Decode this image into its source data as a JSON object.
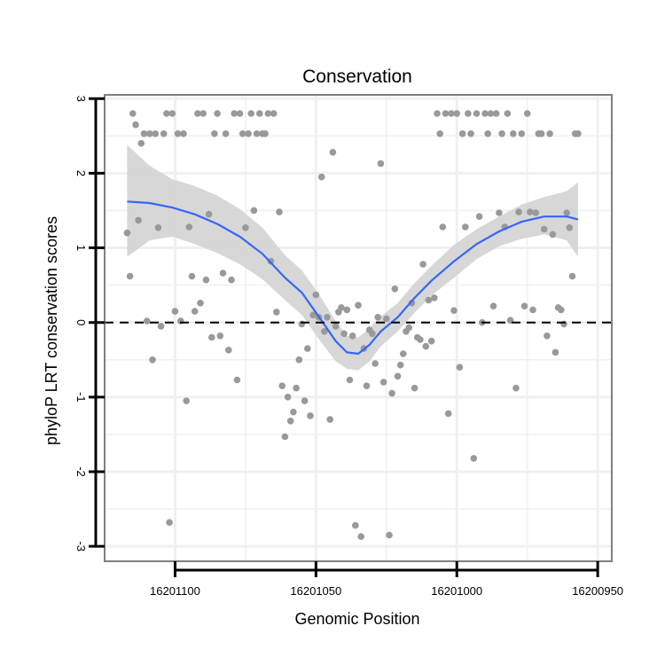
{
  "chart_data": {
    "type": "scatter",
    "title": "Conservation",
    "xlabel": "Genomic Position",
    "ylabel": "phyloP LRT conservation scores",
    "x_reversed": true,
    "xlim": [
      16201125,
      16200945
    ],
    "ylim": [
      -3.2,
      3.05
    ],
    "x_ticks": [
      16201100,
      16201050,
      16201000,
      16200950
    ],
    "x_tick_labels": [
      "16201100",
      "16201050",
      "16201000",
      "16200950"
    ],
    "y_ticks": [
      -3,
      -2,
      -1,
      0,
      1,
      2,
      3
    ],
    "y_tick_labels": [
      "-3",
      "-2",
      "-1",
      "0",
      "1",
      "2",
      "3"
    ],
    "grid": true,
    "reference_line": {
      "y": 0,
      "style": "dashed"
    },
    "colors": {
      "points": "#999999",
      "smooth": "#3366FF",
      "band": "#D3D3D3",
      "panel_border": "#808080",
      "grid": "#F0F0F0"
    },
    "points": [
      [
        16201117,
        1.2
      ],
      [
        16201116,
        0.62
      ],
      [
        16201115,
        2.8
      ],
      [
        16201114,
        2.65
      ],
      [
        16201113,
        1.37
      ],
      [
        16201112,
        2.4
      ],
      [
        16201111,
        2.53
      ],
      [
        16201110,
        0.02
      ],
      [
        16201109,
        2.53
      ],
      [
        16201108,
        -0.5
      ],
      [
        16201107,
        2.53
      ],
      [
        16201106,
        1.27
      ],
      [
        16201105,
        -0.05
      ],
      [
        16201104,
        2.53
      ],
      [
        16201103,
        2.8
      ],
      [
        16201102,
        -2.68
      ],
      [
        16201101,
        2.8
      ],
      [
        16201100,
        0.15
      ],
      [
        16201099,
        2.53
      ],
      [
        16201098,
        0.02
      ],
      [
        16201097,
        2.53
      ],
      [
        16201096,
        -1.05
      ],
      [
        16201095,
        1.28
      ],
      [
        16201094,
        0.62
      ],
      [
        16201093,
        0.15
      ],
      [
        16201092,
        2.8
      ],
      [
        16201091,
        0.26
      ],
      [
        16201090,
        2.8
      ],
      [
        16201089,
        0.57
      ],
      [
        16201088,
        1.45
      ],
      [
        16201087,
        -0.2
      ],
      [
        16201086,
        2.53
      ],
      [
        16201085,
        2.8
      ],
      [
        16201084,
        -0.18
      ],
      [
        16201083,
        0.66
      ],
      [
        16201082,
        2.53
      ],
      [
        16201081,
        -0.37
      ],
      [
        16201080,
        0.57
      ],
      [
        16201079,
        2.8
      ],
      [
        16201078,
        -0.77
      ],
      [
        16201077,
        2.8
      ],
      [
        16201076,
        2.53
      ],
      [
        16201075,
        1.27
      ],
      [
        16201074,
        2.53
      ],
      [
        16201073,
        2.8
      ],
      [
        16201072,
        1.5
      ],
      [
        16201071,
        2.53
      ],
      [
        16201070,
        2.8
      ],
      [
        16201069,
        2.53
      ],
      [
        16201068,
        2.53
      ],
      [
        16201067,
        2.8
      ],
      [
        16201066,
        0.82
      ],
      [
        16201065,
        2.8
      ],
      [
        16201064,
        0.14
      ],
      [
        16201063,
        1.48
      ],
      [
        16201062,
        -0.85
      ],
      [
        16201061,
        -1.53
      ],
      [
        16201060,
        -1.0
      ],
      [
        16201059,
        -1.32
      ],
      [
        16201058,
        -1.2
      ],
      [
        16201057,
        -0.88
      ],
      [
        16201056,
        -0.5
      ],
      [
        16201055,
        -0.02
      ],
      [
        16201054,
        -1.05
      ],
      [
        16201053,
        -0.35
      ],
      [
        16201052,
        -1.25
      ],
      [
        16201051,
        0.1
      ],
      [
        16201050,
        0.37
      ],
      [
        16201049,
        0.07
      ],
      [
        16201048,
        1.95
      ],
      [
        16201047,
        -0.12
      ],
      [
        16201046,
        0.07
      ],
      [
        16201045,
        -1.3
      ],
      [
        16201044,
        2.28
      ],
      [
        16201043,
        -0.05
      ],
      [
        16201042,
        0.14
      ],
      [
        16201041,
        0.2
      ],
      [
        16201040,
        -0.15
      ],
      [
        16201039,
        0.17
      ],
      [
        16201038,
        -0.77
      ],
      [
        16201037,
        -0.18
      ],
      [
        16201036,
        -2.72
      ],
      [
        16201035,
        0.23
      ],
      [
        16201034,
        -2.87
      ],
      [
        16201033,
        -0.35
      ],
      [
        16201032,
        -0.85
      ],
      [
        16201031,
        -0.1
      ],
      [
        16201030,
        -0.15
      ],
      [
        16201029,
        -0.55
      ],
      [
        16201028,
        0.07
      ],
      [
        16201027,
        2.13
      ],
      [
        16201026,
        -0.8
      ],
      [
        16201025,
        0.05
      ],
      [
        16201024,
        -2.85
      ],
      [
        16201023,
        -0.95
      ],
      [
        16201022,
        0.45
      ],
      [
        16201021,
        -0.72
      ],
      [
        16201020,
        -0.57
      ],
      [
        16201019,
        -0.42
      ],
      [
        16201018,
        -0.12
      ],
      [
        16201017,
        -0.07
      ],
      [
        16201016,
        0.26
      ],
      [
        16201015,
        -0.88
      ],
      [
        16201014,
        -0.2
      ],
      [
        16201013,
        -0.23
      ],
      [
        16201012,
        0.78
      ],
      [
        16201011,
        -0.32
      ],
      [
        16201010,
        0.3
      ],
      [
        16201009,
        -0.25
      ],
      [
        16201008,
        0.33
      ],
      [
        16201007,
        2.8
      ],
      [
        16201006,
        2.53
      ],
      [
        16201005,
        1.28
      ],
      [
        16201004,
        2.8
      ],
      [
        16201003,
        -1.22
      ],
      [
        16201002,
        2.8
      ],
      [
        16201001,
        0.16
      ],
      [
        16201000,
        2.8
      ],
      [
        16200999,
        -0.6
      ],
      [
        16200998,
        2.53
      ],
      [
        16200997,
        1.28
      ],
      [
        16200996,
        2.8
      ],
      [
        16200995,
        2.53
      ],
      [
        16200994,
        -1.82
      ],
      [
        16200993,
        2.8
      ],
      [
        16200992,
        1.42
      ],
      [
        16200991,
        0.0
      ],
      [
        16200990,
        2.8
      ],
      [
        16200989,
        2.53
      ],
      [
        16200988,
        2.8
      ],
      [
        16200987,
        0.22
      ],
      [
        16200986,
        2.8
      ],
      [
        16200985,
        1.47
      ],
      [
        16200984,
        2.53
      ],
      [
        16200983,
        1.28
      ],
      [
        16200982,
        2.8
      ],
      [
        16200981,
        0.03
      ],
      [
        16200980,
        2.53
      ],
      [
        16200979,
        -0.88
      ],
      [
        16200978,
        1.48
      ],
      [
        16200977,
        2.53
      ],
      [
        16200976,
        0.22
      ],
      [
        16200975,
        2.8
      ],
      [
        16200974,
        1.48
      ],
      [
        16200973,
        0.17
      ],
      [
        16200972,
        1.47
      ],
      [
        16200971,
        2.53
      ],
      [
        16200970,
        2.53
      ],
      [
        16200969,
        1.25
      ],
      [
        16200968,
        -0.18
      ],
      [
        16200967,
        2.53
      ],
      [
        16200966,
        1.18
      ],
      [
        16200965,
        -0.4
      ],
      [
        16200964,
        0.2
      ],
      [
        16200963,
        0.17
      ],
      [
        16200962,
        -0.02
      ],
      [
        16200961,
        1.47
      ],
      [
        16200960,
        1.27
      ],
      [
        16200959,
        0.62
      ],
      [
        16200958,
        2.53
      ],
      [
        16200957,
        2.53
      ]
    ],
    "smooth": {
      "method": "loess",
      "x": [
        16201117,
        16201109,
        16201101,
        16201093,
        16201085,
        16201077,
        16201069,
        16201061,
        16201055,
        16201049,
        16201043,
        16201039,
        16201035,
        16201031,
        16201027,
        16201021,
        16201015,
        16201009,
        16201001,
        16200993,
        16200985,
        16200977,
        16200969,
        16200961,
        16200957
      ],
      "y": [
        1.62,
        1.6,
        1.54,
        1.45,
        1.32,
        1.15,
        0.92,
        0.6,
        0.4,
        0.08,
        -0.25,
        -0.4,
        -0.42,
        -0.3,
        -0.12,
        0.07,
        0.33,
        0.56,
        0.82,
        1.05,
        1.22,
        1.35,
        1.42,
        1.42,
        1.38
      ],
      "ci_lower": [
        0.88,
        1.1,
        1.15,
        1.05,
        0.93,
        0.78,
        0.58,
        0.3,
        0.1,
        -0.22,
        -0.52,
        -0.62,
        -0.64,
        -0.52,
        -0.32,
        -0.12,
        0.13,
        0.36,
        0.6,
        0.85,
        1.02,
        1.12,
        1.18,
        1.1,
        0.88
      ],
      "ci_upper": [
        2.38,
        2.1,
        1.92,
        1.83,
        1.7,
        1.52,
        1.27,
        0.9,
        0.7,
        0.38,
        0.02,
        -0.18,
        -0.2,
        -0.08,
        0.08,
        0.26,
        0.53,
        0.76,
        1.04,
        1.25,
        1.42,
        1.58,
        1.68,
        1.76,
        1.88
      ]
    }
  }
}
